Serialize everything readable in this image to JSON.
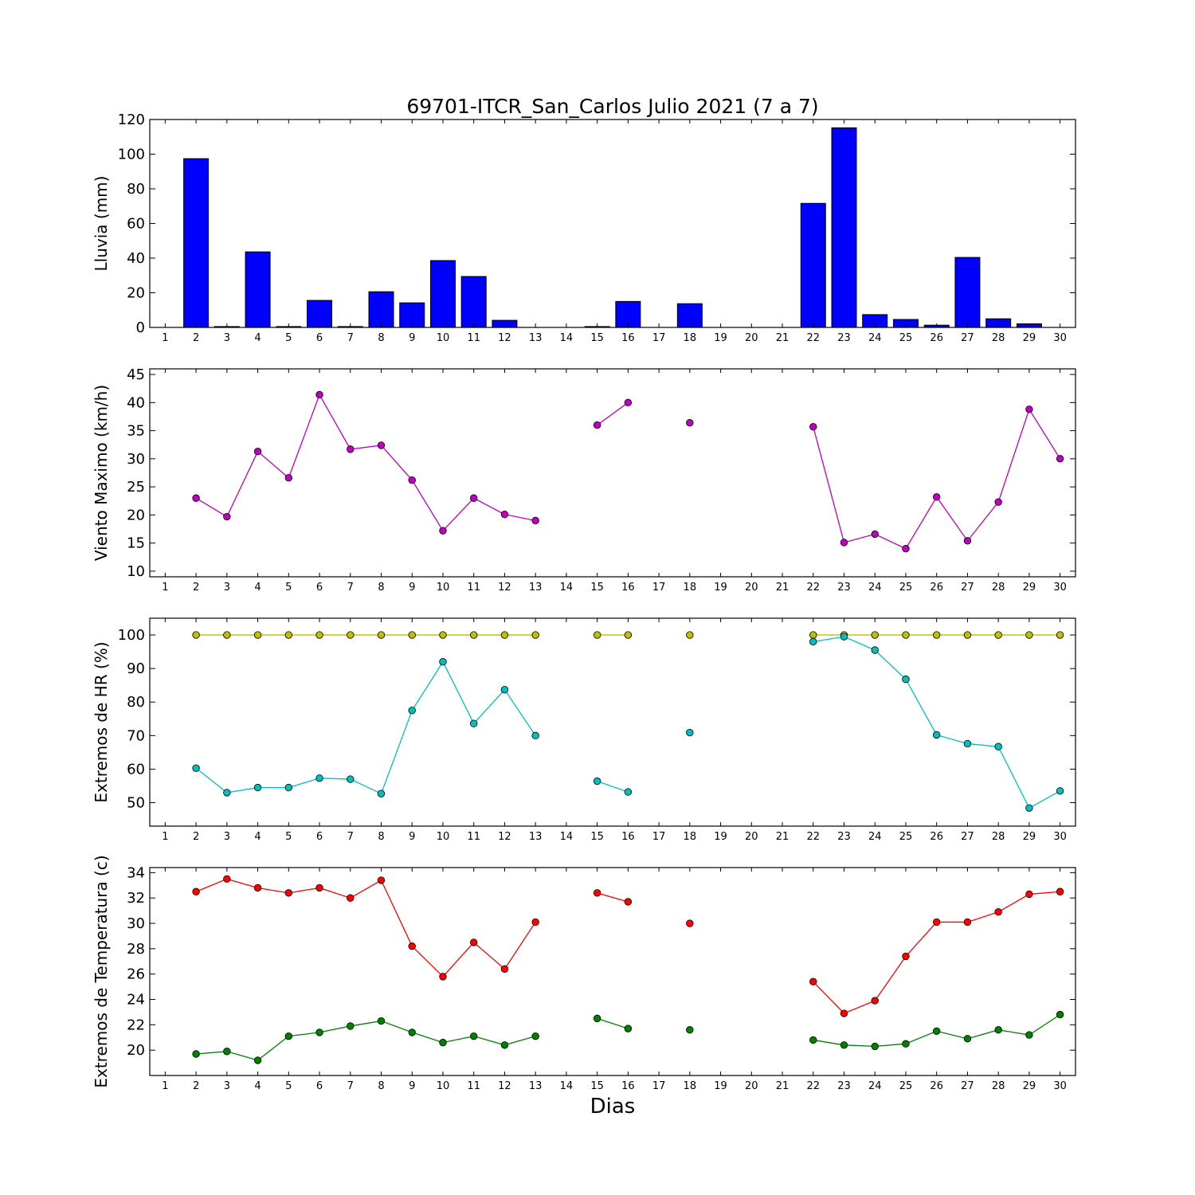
{
  "title": "69701-ITCR_San_Carlos Julio 2021  (7 a 7)",
  "xlabel": "Dias",
  "chart_data": [
    {
      "type": "bar",
      "ylabel": "Lluvia (mm)",
      "ylim": [
        0,
        120
      ],
      "yticks": [
        "0",
        "20",
        "40",
        "60",
        "80",
        "100",
        "120"
      ],
      "xticks": [
        "1",
        "2",
        "3",
        "4",
        "5",
        "6",
        "7",
        "8",
        "9",
        "10",
        "11",
        "12",
        "13",
        "14",
        "15",
        "16",
        "17",
        "18",
        "19",
        "20",
        "21",
        "22",
        "23",
        "24",
        "25",
        "26",
        "27",
        "28",
        "29",
        "30"
      ],
      "x": [
        2,
        3,
        4,
        5,
        6,
        7,
        8,
        9,
        10,
        11,
        12,
        15,
        16,
        18,
        22,
        23,
        24,
        25,
        26,
        27,
        28,
        29
      ],
      "values": [
        97.4,
        0.5,
        43.6,
        0.5,
        15.6,
        0.5,
        20.6,
        14.2,
        38.6,
        29.4,
        4.1,
        0.5,
        15.0,
        13.7,
        71.6,
        115.2,
        7.4,
        4.6,
        1.3,
        40.4,
        5.0,
        2.1
      ],
      "color": "#0000ff"
    },
    {
      "type": "line",
      "ylabel": "Viento Maximo (km/h)",
      "ylim": [
        9,
        46
      ],
      "yticks": [
        "10",
        "15",
        "20",
        "25",
        "30",
        "35",
        "40",
        "45"
      ],
      "xticks": [
        "1",
        "2",
        "3",
        "4",
        "5",
        "6",
        "7",
        "8",
        "9",
        "10",
        "11",
        "12",
        "13",
        "14",
        "15",
        "16",
        "17",
        "18",
        "19",
        "20",
        "21",
        "22",
        "23",
        "24",
        "25",
        "26",
        "27",
        "28",
        "29",
        "30"
      ],
      "series": [
        {
          "color": "#bf00bf",
          "x": [
            1,
            2,
            3,
            4,
            5,
            6,
            7,
            8,
            9,
            10,
            11,
            12,
            13,
            14,
            15,
            16,
            17,
            18,
            19,
            20,
            21,
            22,
            23,
            24,
            25,
            26,
            27,
            28,
            29,
            30
          ],
          "values": [
            null,
            23.0,
            19.7,
            31.3,
            26.6,
            41.4,
            31.7,
            32.4,
            26.2,
            17.2,
            23.0,
            20.1,
            19.0,
            null,
            36.0,
            40.0,
            null,
            36.4,
            null,
            null,
            null,
            35.7,
            15.1,
            16.6,
            14.0,
            23.2,
            15.4,
            22.3,
            38.8,
            30.0
          ]
        }
      ]
    },
    {
      "type": "line",
      "ylabel": "Extremos de HR (%)",
      "ylim": [
        43,
        105
      ],
      "yticks": [
        "50",
        "60",
        "70",
        "80",
        "90",
        "100"
      ],
      "xticks": [
        "1",
        "2",
        "3",
        "4",
        "5",
        "6",
        "7",
        "8",
        "9",
        "10",
        "11",
        "12",
        "13",
        "14",
        "15",
        "16",
        "17",
        "18",
        "19",
        "20",
        "21",
        "22",
        "23",
        "24",
        "25",
        "26",
        "27",
        "28",
        "29",
        "30"
      ],
      "series": [
        {
          "color": "#bfbf00",
          "x": [
            1,
            2,
            3,
            4,
            5,
            6,
            7,
            8,
            9,
            10,
            11,
            12,
            13,
            14,
            15,
            16,
            17,
            18,
            19,
            20,
            21,
            22,
            23,
            24,
            25,
            26,
            27,
            28,
            29,
            30
          ],
          "values": [
            null,
            100,
            100,
            100,
            100,
            100,
            100,
            100,
            100,
            100,
            100,
            100,
            100,
            null,
            100,
            100,
            null,
            100,
            null,
            null,
            null,
            100,
            100,
            100,
            100,
            100,
            100,
            100,
            100,
            100
          ]
        },
        {
          "color": "#00bfbf",
          "x": [
            1,
            2,
            3,
            4,
            5,
            6,
            7,
            8,
            9,
            10,
            11,
            12,
            13,
            14,
            15,
            16,
            17,
            18,
            19,
            20,
            21,
            22,
            23,
            24,
            25,
            26,
            27,
            28,
            29,
            30
          ],
          "values": [
            null,
            60.3,
            53.0,
            54.5,
            54.5,
            57.3,
            57.0,
            52.7,
            77.5,
            92.0,
            73.6,
            83.7,
            70.0,
            null,
            56.4,
            53.2,
            null,
            70.9,
            null,
            null,
            null,
            98.0,
            99.5,
            95.5,
            86.8,
            70.2,
            67.6,
            66.7,
            48.4,
            53.5
          ]
        }
      ]
    },
    {
      "type": "line",
      "ylabel": "Extremos de Temperatura (c)",
      "ylim": [
        18,
        34.4
      ],
      "yticks": [
        "20",
        "22",
        "24",
        "26",
        "28",
        "30",
        "32",
        "34"
      ],
      "xticks": [
        "1",
        "2",
        "3",
        "4",
        "5",
        "6",
        "7",
        "8",
        "9",
        "10",
        "11",
        "12",
        "13",
        "14",
        "15",
        "16",
        "17",
        "18",
        "19",
        "20",
        "21",
        "22",
        "23",
        "24",
        "25",
        "26",
        "27",
        "28",
        "29",
        "30"
      ],
      "series": [
        {
          "color": "#ff0000",
          "x": [
            1,
            2,
            3,
            4,
            5,
            6,
            7,
            8,
            9,
            10,
            11,
            12,
            13,
            14,
            15,
            16,
            17,
            18,
            19,
            20,
            21,
            22,
            23,
            24,
            25,
            26,
            27,
            28,
            29,
            30
          ],
          "values": [
            null,
            32.5,
            33.5,
            32.8,
            32.4,
            32.8,
            32.0,
            33.4,
            28.2,
            25.8,
            28.5,
            26.4,
            30.1,
            null,
            32.4,
            31.7,
            null,
            30.0,
            null,
            null,
            null,
            25.4,
            22.9,
            23.9,
            27.4,
            30.1,
            30.1,
            30.9,
            32.3,
            32.5
          ]
        },
        {
          "color": "#008000",
          "x": [
            1,
            2,
            3,
            4,
            5,
            6,
            7,
            8,
            9,
            10,
            11,
            12,
            13,
            14,
            15,
            16,
            17,
            18,
            19,
            20,
            21,
            22,
            23,
            24,
            25,
            26,
            27,
            28,
            29,
            30
          ],
          "values": [
            null,
            19.7,
            19.9,
            19.2,
            21.1,
            21.4,
            21.9,
            22.3,
            21.4,
            20.6,
            21.1,
            20.4,
            21.1,
            null,
            22.5,
            21.7,
            null,
            21.6,
            null,
            null,
            null,
            20.8,
            20.4,
            20.3,
            20.5,
            21.5,
            20.9,
            21.6,
            21.2,
            22.8
          ]
        }
      ]
    }
  ]
}
